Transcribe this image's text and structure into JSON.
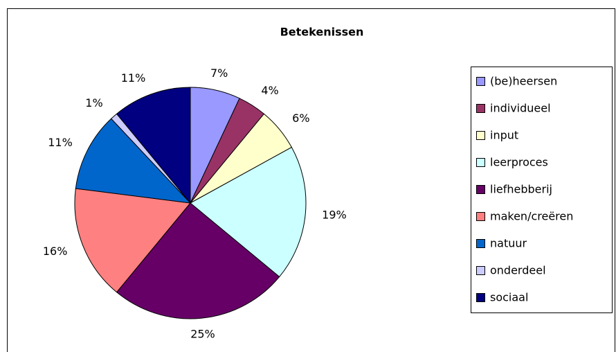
{
  "chart_data": {
    "type": "pie",
    "title": "Betekenissen",
    "categories": [
      "(be)heersen",
      "individueel",
      "input",
      "leerproces",
      "liefhebberij",
      "maken/creëren",
      "natuur",
      "onderdeel",
      "sociaal"
    ],
    "values": [
      7,
      4,
      6,
      19,
      25,
      16,
      11,
      1,
      11
    ],
    "value_labels": [
      "7%",
      "4%",
      "6%",
      "19%",
      "25%",
      "16%",
      "11%",
      "1%",
      "11%"
    ],
    "colors": [
      "#9999ff",
      "#993366",
      "#ffffcc",
      "#ccffff",
      "#660066",
      "#ff8080",
      "#0066cc",
      "#ccccff",
      "#000080"
    ],
    "legend": "right"
  }
}
